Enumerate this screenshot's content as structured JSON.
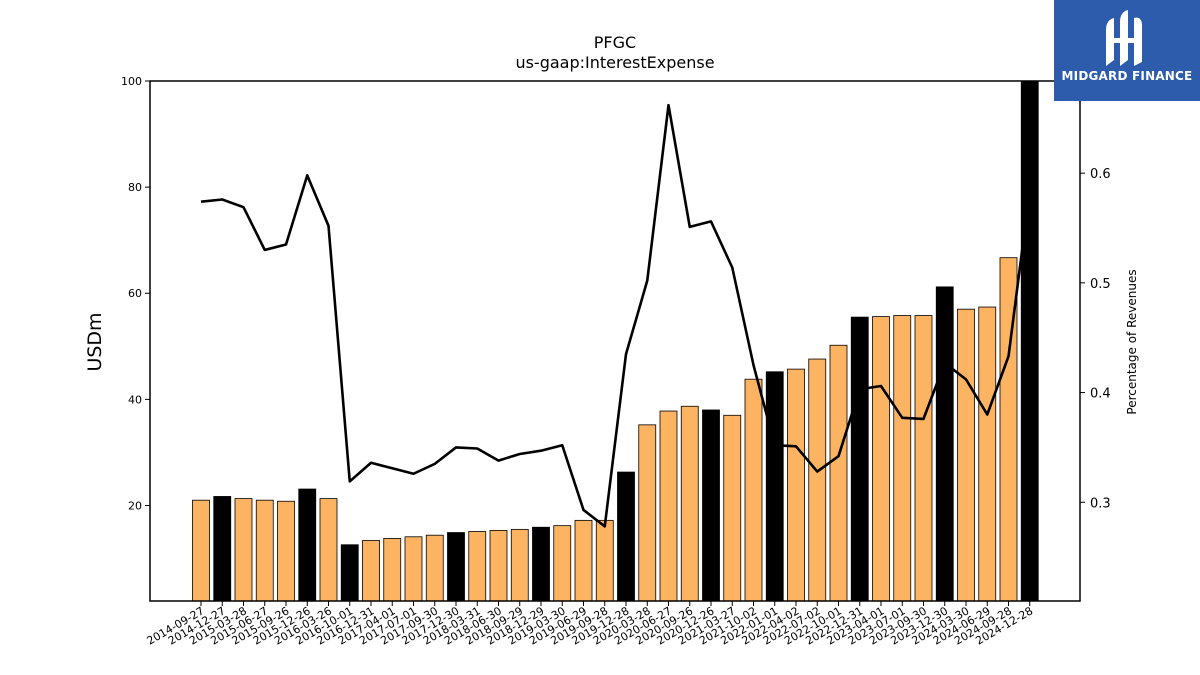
{
  "chart_data": {
    "type": "bar",
    "title": "PFGC",
    "subtitle": "us-gaap:InterestExpense",
    "ylabel": "USDm",
    "y2label": "Percentage of Revenues",
    "ylim": [
      2,
      100
    ],
    "yticks": [
      20,
      40,
      60,
      80,
      100
    ],
    "y2lim": [
      0.21,
      0.684
    ],
    "y2ticks": [
      0.3,
      0.4,
      0.5,
      0.6
    ],
    "grid": false,
    "categories": [
      "2014-09-27",
      "2014-12-27",
      "2015-03-28",
      "2015-06-27",
      "2015-09-26",
      "2015-12-26",
      "2016-03-26",
      "2016-10-01",
      "2016-12-31",
      "2017-04-01",
      "2017-07-01",
      "2017-09-30",
      "2017-12-30",
      "2018-03-31",
      "2018-06-30",
      "2018-09-29",
      "2018-12-29",
      "2019-03-30",
      "2019-06-29",
      "2019-09-28",
      "2019-12-28",
      "2020-03-28",
      "2020-06-27",
      "2020-09-26",
      "2020-12-26",
      "2021-03-27",
      "2021-10-02",
      "2022-01-01",
      "2022-04-02",
      "2022-07-02",
      "2022-10-01",
      "2022-12-31",
      "2023-04-01",
      "2023-07-01",
      "2023-09-30",
      "2023-12-30",
      "2024-03-30",
      "2024-06-29",
      "2024-09-28",
      "2024-12-28"
    ],
    "series": [
      {
        "values": [
          21.0,
          21.7,
          21.3,
          21.0,
          20.8,
          23.1,
          21.3,
          12.6,
          13.4,
          13.8,
          14.1,
          14.4,
          14.9,
          15.1,
          15.3,
          15.5,
          15.9,
          16.2,
          17.2,
          17.2,
          26.3,
          35.2,
          37.8,
          38.7,
          38.0,
          37.0,
          43.8,
          45.2,
          45.7,
          47.6,
          50.2,
          55.5,
          55.6,
          55.8,
          55.8,
          61.2,
          57.0,
          57.4,
          66.7,
          100.0
        ],
        "highlight": [
          false,
          true,
          false,
          false,
          false,
          true,
          false,
          true,
          false,
          false,
          false,
          false,
          true,
          false,
          false,
          false,
          true,
          false,
          false,
          false,
          true,
          false,
          false,
          false,
          true,
          false,
          false,
          true,
          false,
          false,
          false,
          true,
          false,
          false,
          false,
          true,
          false,
          false,
          false,
          true
        ]
      },
      {
        "type": "line",
        "values": [
          0.574,
          0.576,
          0.569,
          0.53,
          0.535,
          0.598,
          0.552,
          0.319,
          0.336,
          0.331,
          0.326,
          0.335,
          0.35,
          0.349,
          0.338,
          0.344,
          0.347,
          0.352,
          0.293,
          0.278,
          0.435,
          0.502,
          0.662,
          0.551,
          0.556,
          0.514,
          0.425,
          0.352,
          0.351,
          0.328,
          0.342,
          0.403,
          0.406,
          0.377,
          0.376,
          0.427,
          0.412,
          0.38,
          0.433,
          0.584
        ]
      }
    ],
    "colors": {
      "bar": "#fdb462",
      "bar_highlight": "#000000",
      "line": "#000000"
    }
  },
  "logo": {
    "name": "midgard-finance-logo",
    "text": "MIDGARD FINANCE"
  }
}
